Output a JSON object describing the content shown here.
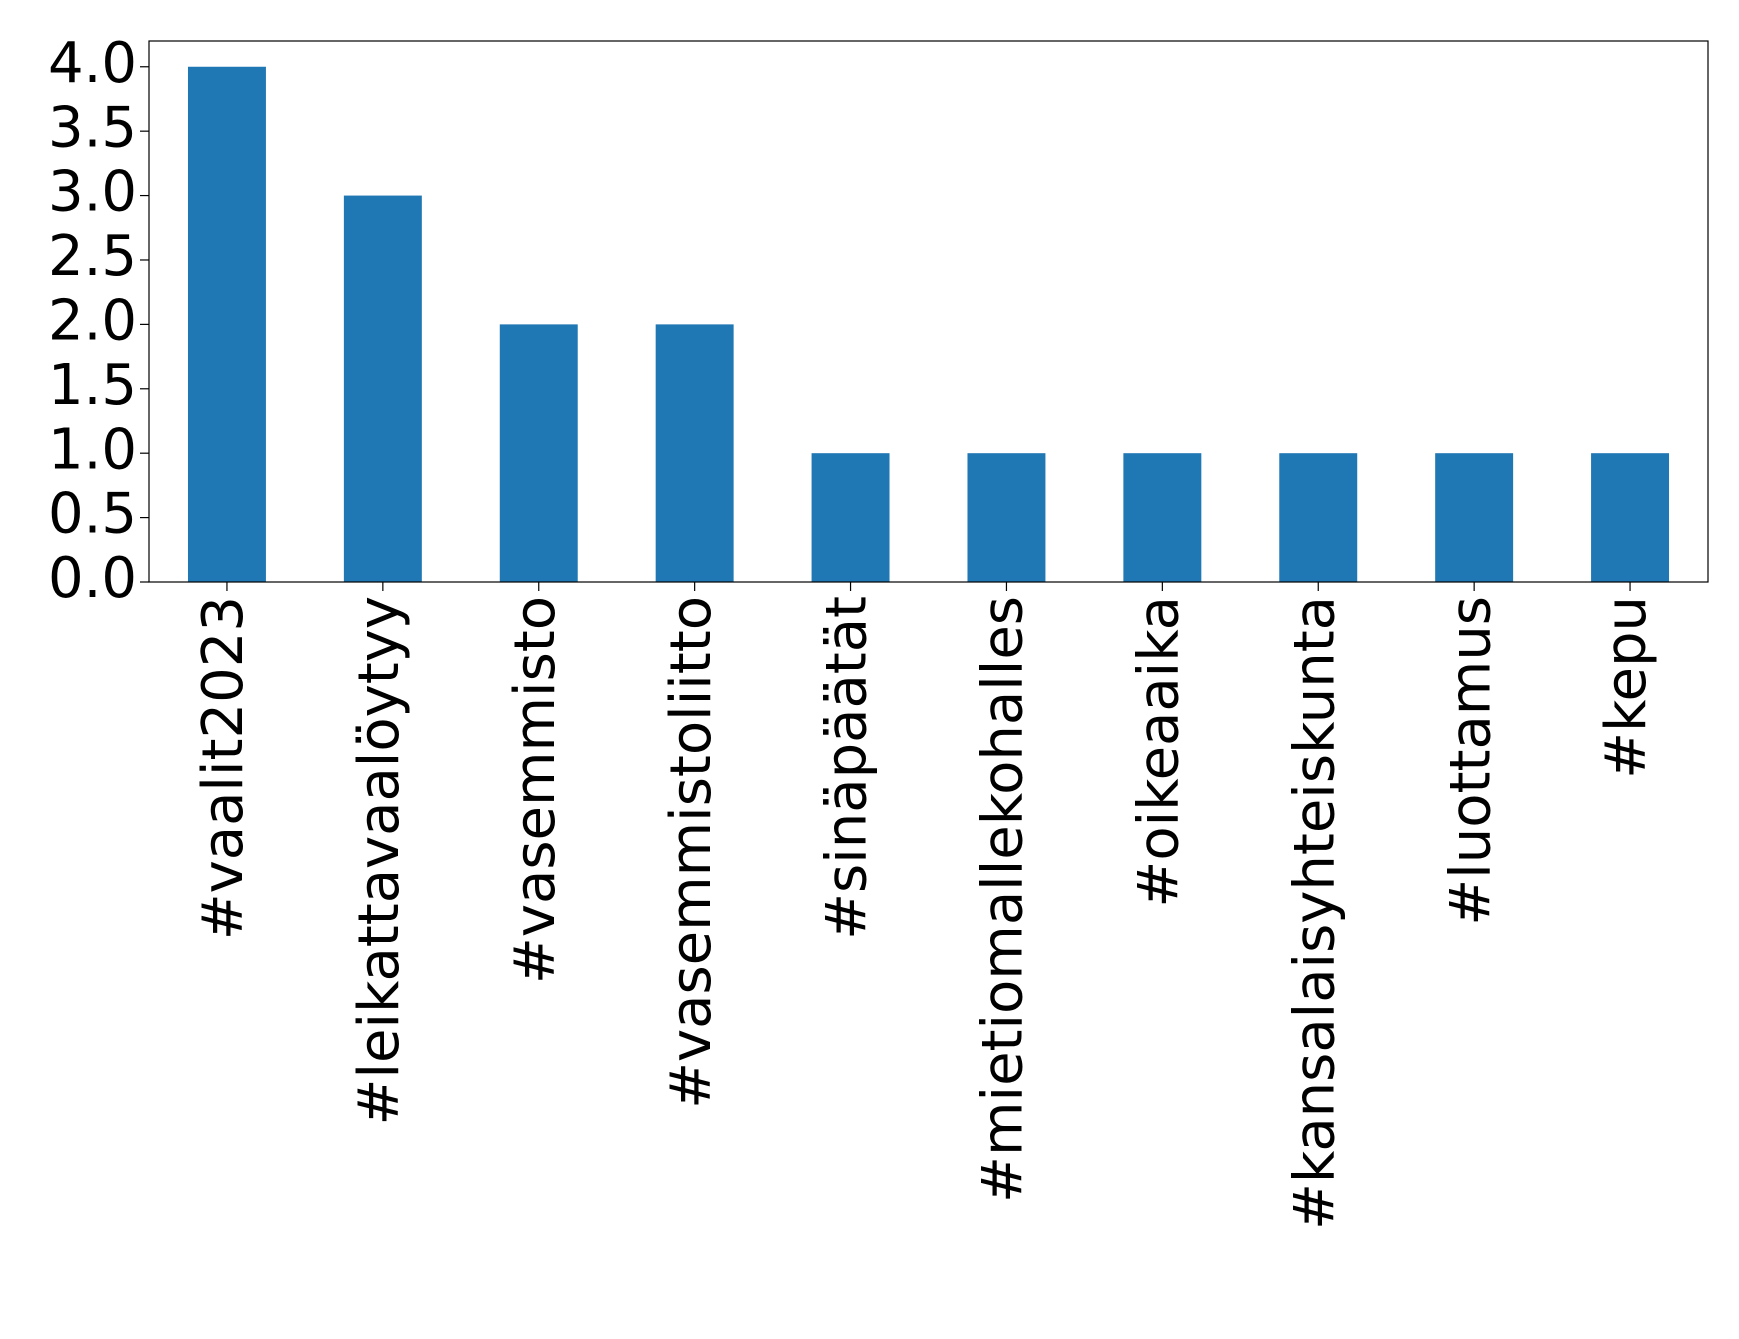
{
  "chart_data": {
    "type": "bar",
    "categories": [
      "#vaalit2023",
      "#leikattavaalöytyy",
      "#vasemmisto",
      "#vasemmistoliitto",
      "#sinäpäätät",
      "#mietiomallekohalles",
      "#oikeaaika",
      "#kansalaisyhteiskunta",
      "#luottamus",
      "#kepu"
    ],
    "values": [
      4,
      3,
      2,
      2,
      1,
      1,
      1,
      1,
      1,
      1
    ],
    "color": "#1f77b4",
    "ylim": [
      0,
      4.2
    ],
    "yticks": [
      {
        "value": 0,
        "label": "0.0"
      },
      {
        "value": 0.5,
        "label": "0.5"
      },
      {
        "value": 1,
        "label": "1.0"
      },
      {
        "value": 1.5,
        "label": "1.5"
      },
      {
        "value": 2,
        "label": "2.0"
      },
      {
        "value": 2.5,
        "label": "2.5"
      },
      {
        "value": 3,
        "label": "3.0"
      },
      {
        "value": 3.5,
        "label": "3.5"
      },
      {
        "value": 4,
        "label": "4.0"
      }
    ],
    "grid": false
  }
}
